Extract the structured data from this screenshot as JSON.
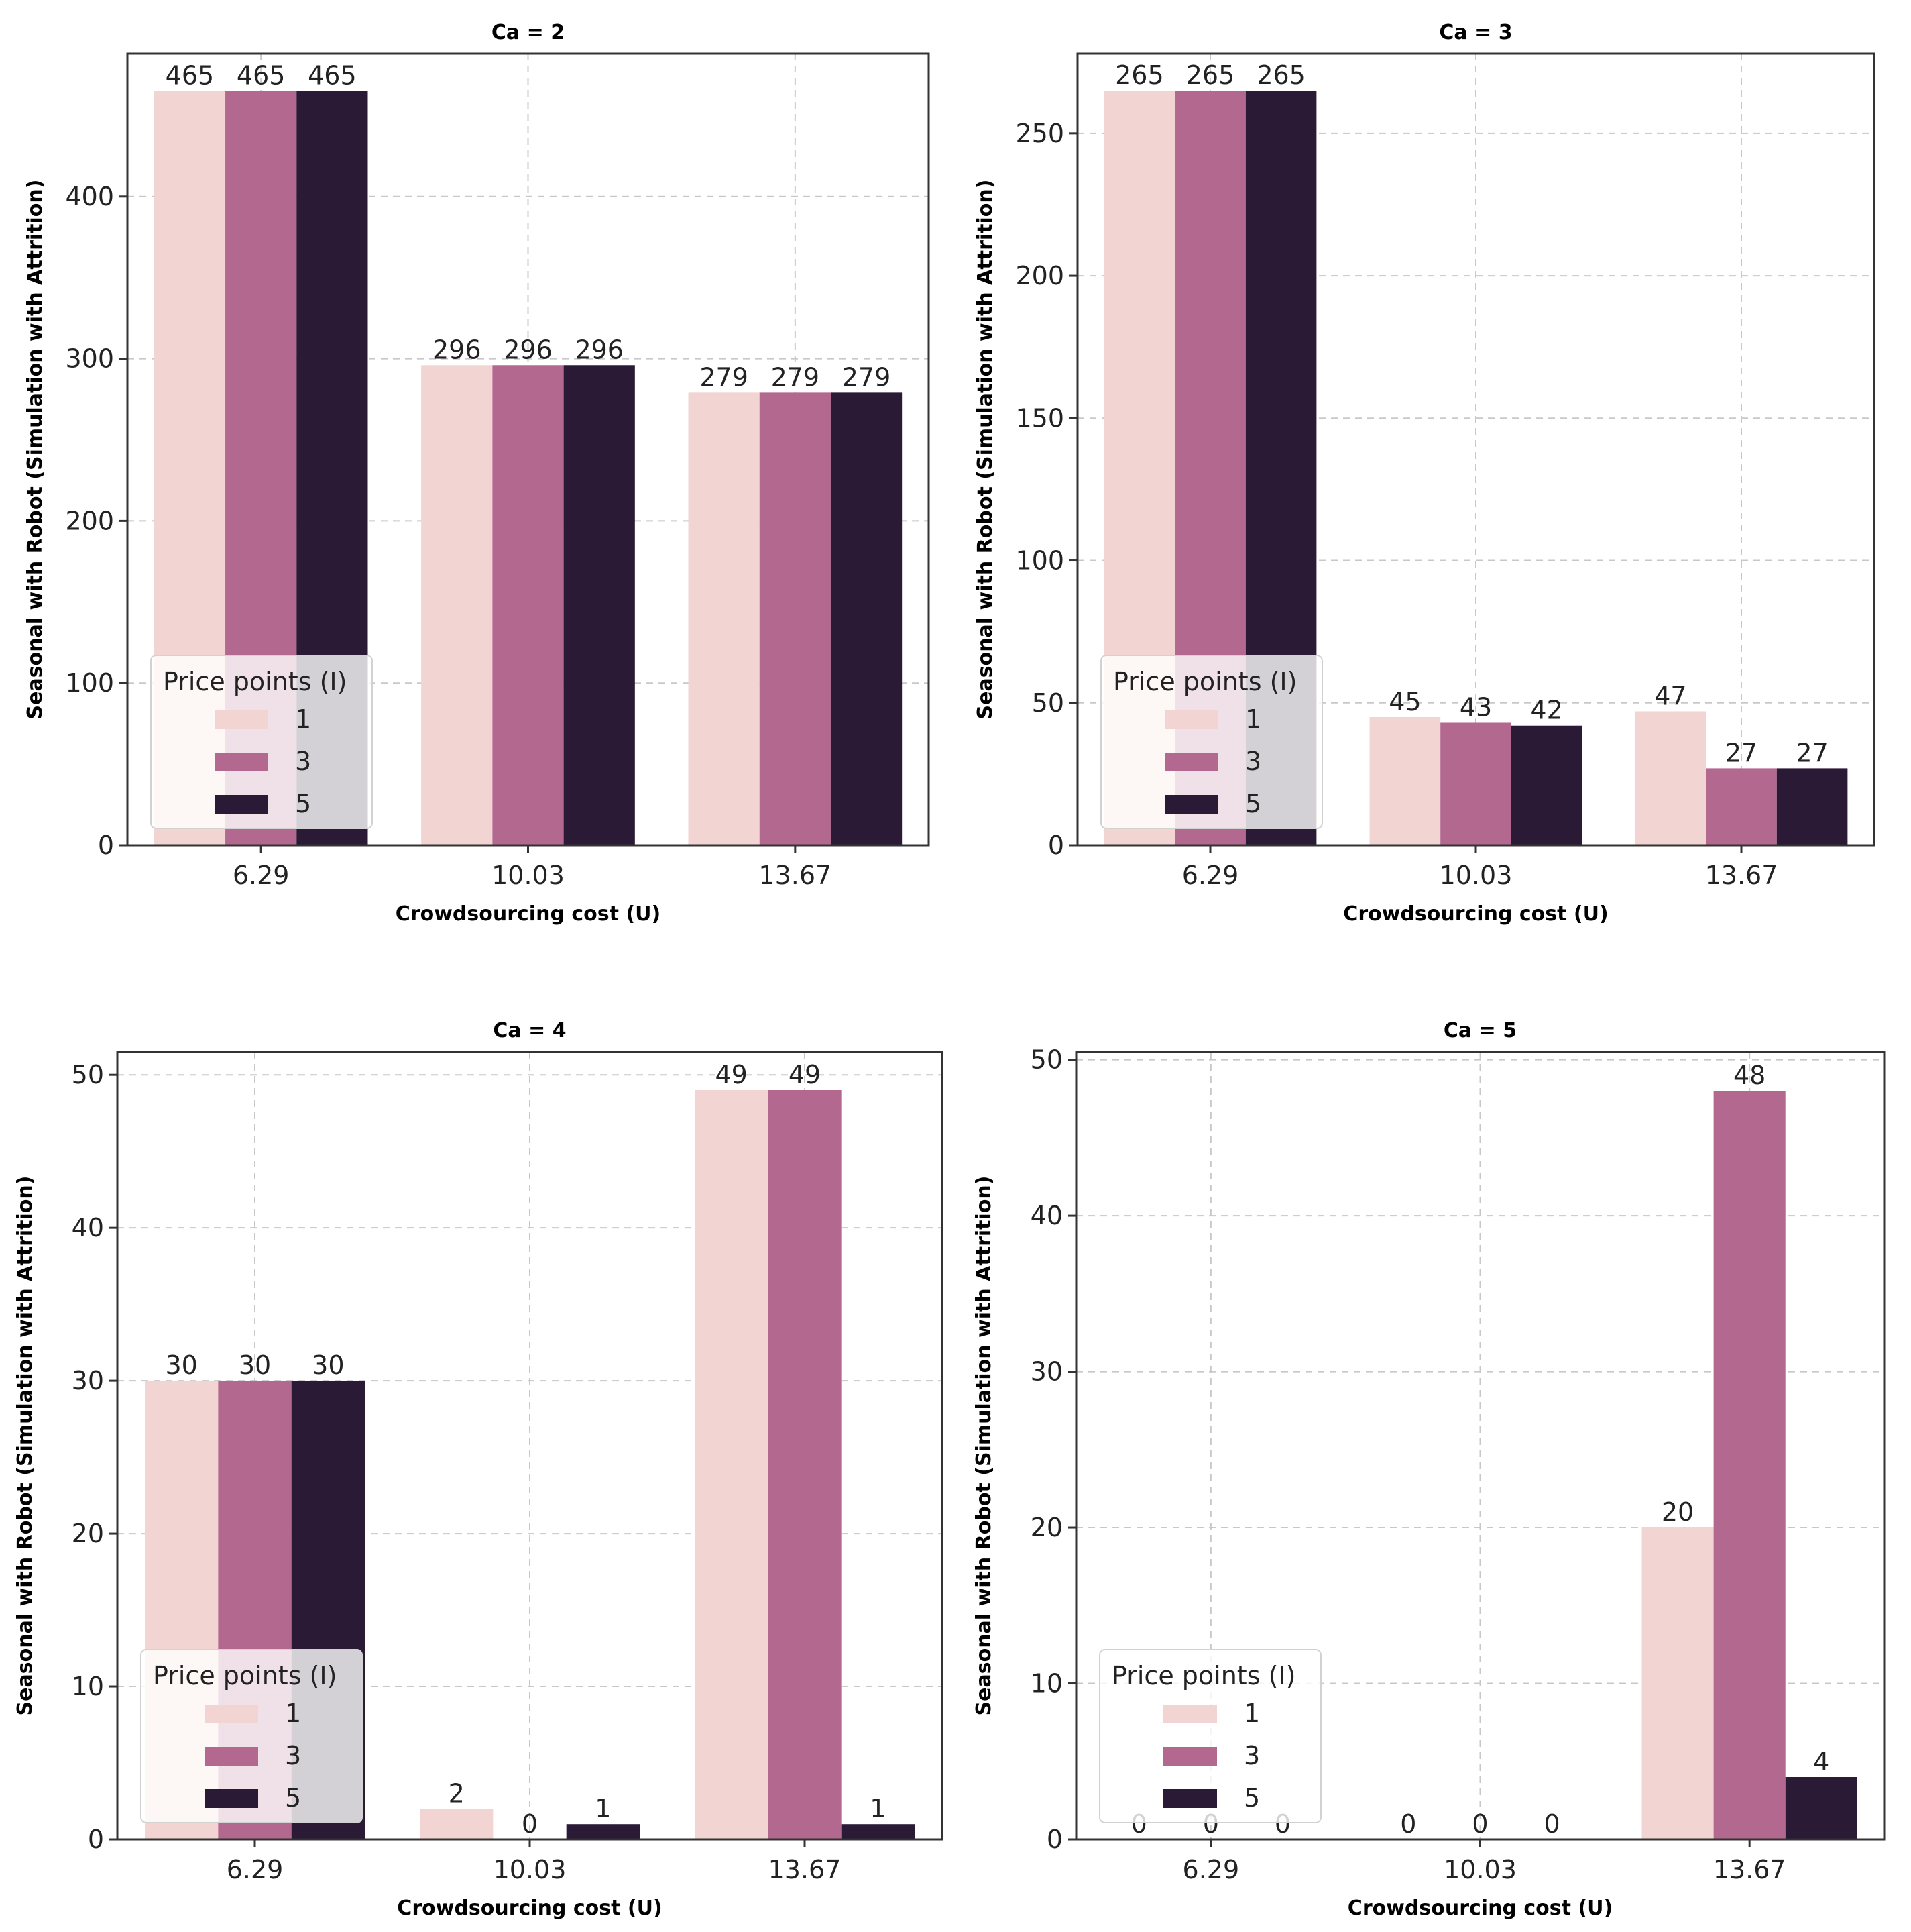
{
  "figure": {
    "legend_title": "Price points (I)",
    "colors": {
      "1": "#f2d4d2",
      "3": "#b3688f",
      "5": "#2b1a36"
    }
  },
  "chart_data": [
    {
      "type": "bar",
      "title": "Ca = 2",
      "xlabel": "Crowdsourcing cost (U)",
      "ylabel": "Seasonal with Robot (Simulation with Attrition)",
      "categories": [
        "6.29",
        "10.03",
        "13.67"
      ],
      "series": [
        {
          "name": "1",
          "values": [
            465,
            296,
            279
          ]
        },
        {
          "name": "3",
          "values": [
            465,
            296,
            279
          ]
        },
        {
          "name": "5",
          "values": [
            465,
            296,
            279
          ]
        }
      ],
      "ylim": [
        0,
        488
      ],
      "yticks": [
        0,
        100,
        200,
        300,
        400
      ],
      "legend": {
        "title": "Price points (I)",
        "entries": [
          "1",
          "3",
          "5"
        ],
        "placement": "lower-left"
      },
      "grid": true
    },
    {
      "type": "bar",
      "title": "Ca = 3",
      "xlabel": "Crowdsourcing cost (U)",
      "ylabel": "Seasonal with Robot (Simulation with Attrition)",
      "categories": [
        "6.29",
        "10.03",
        "13.67"
      ],
      "series": [
        {
          "name": "1",
          "values": [
            265,
            45,
            47
          ]
        },
        {
          "name": "3",
          "values": [
            265,
            43,
            27
          ]
        },
        {
          "name": "5",
          "values": [
            265,
            42,
            27
          ]
        }
      ],
      "ylim": [
        0,
        278
      ],
      "yticks": [
        0,
        50,
        100,
        150,
        200,
        250
      ],
      "legend": {
        "title": "Price points (I)",
        "entries": [
          "1",
          "3",
          "5"
        ],
        "placement": "lower-left"
      },
      "grid": true
    },
    {
      "type": "bar",
      "title": "Ca = 4",
      "xlabel": "Crowdsourcing cost (U)",
      "ylabel": "Seasonal with Robot (Simulation with Attrition)",
      "categories": [
        "6.29",
        "10.03",
        "13.67"
      ],
      "series": [
        {
          "name": "1",
          "values": [
            30,
            2,
            49
          ]
        },
        {
          "name": "3",
          "values": [
            30,
            0,
            49
          ]
        },
        {
          "name": "5",
          "values": [
            30,
            1,
            1
          ]
        }
      ],
      "ylim": [
        0,
        51.5
      ],
      "yticks": [
        0,
        10,
        20,
        30,
        40,
        50
      ],
      "legend": {
        "title": "Price points (I)",
        "entries": [
          "1",
          "3",
          "5"
        ],
        "placement": "lower-left"
      },
      "grid": true
    },
    {
      "type": "bar",
      "title": "Ca = 5",
      "xlabel": "Crowdsourcing cost (U)",
      "ylabel": "Seasonal with Robot (Simulation with Attrition)",
      "categories": [
        "6.29",
        "10.03",
        "13.67"
      ],
      "series": [
        {
          "name": "1",
          "values": [
            0,
            0,
            20
          ]
        },
        {
          "name": "3",
          "values": [
            0,
            0,
            48
          ]
        },
        {
          "name": "5",
          "values": [
            0,
            0,
            4
          ]
        }
      ],
      "ylim": [
        0,
        50.5
      ],
      "yticks": [
        0,
        10,
        20,
        30,
        40,
        50
      ],
      "legend": {
        "title": "Price points (I)",
        "entries": [
          "1",
          "3",
          "5"
        ],
        "placement": "lower-left"
      },
      "grid": true
    }
  ]
}
